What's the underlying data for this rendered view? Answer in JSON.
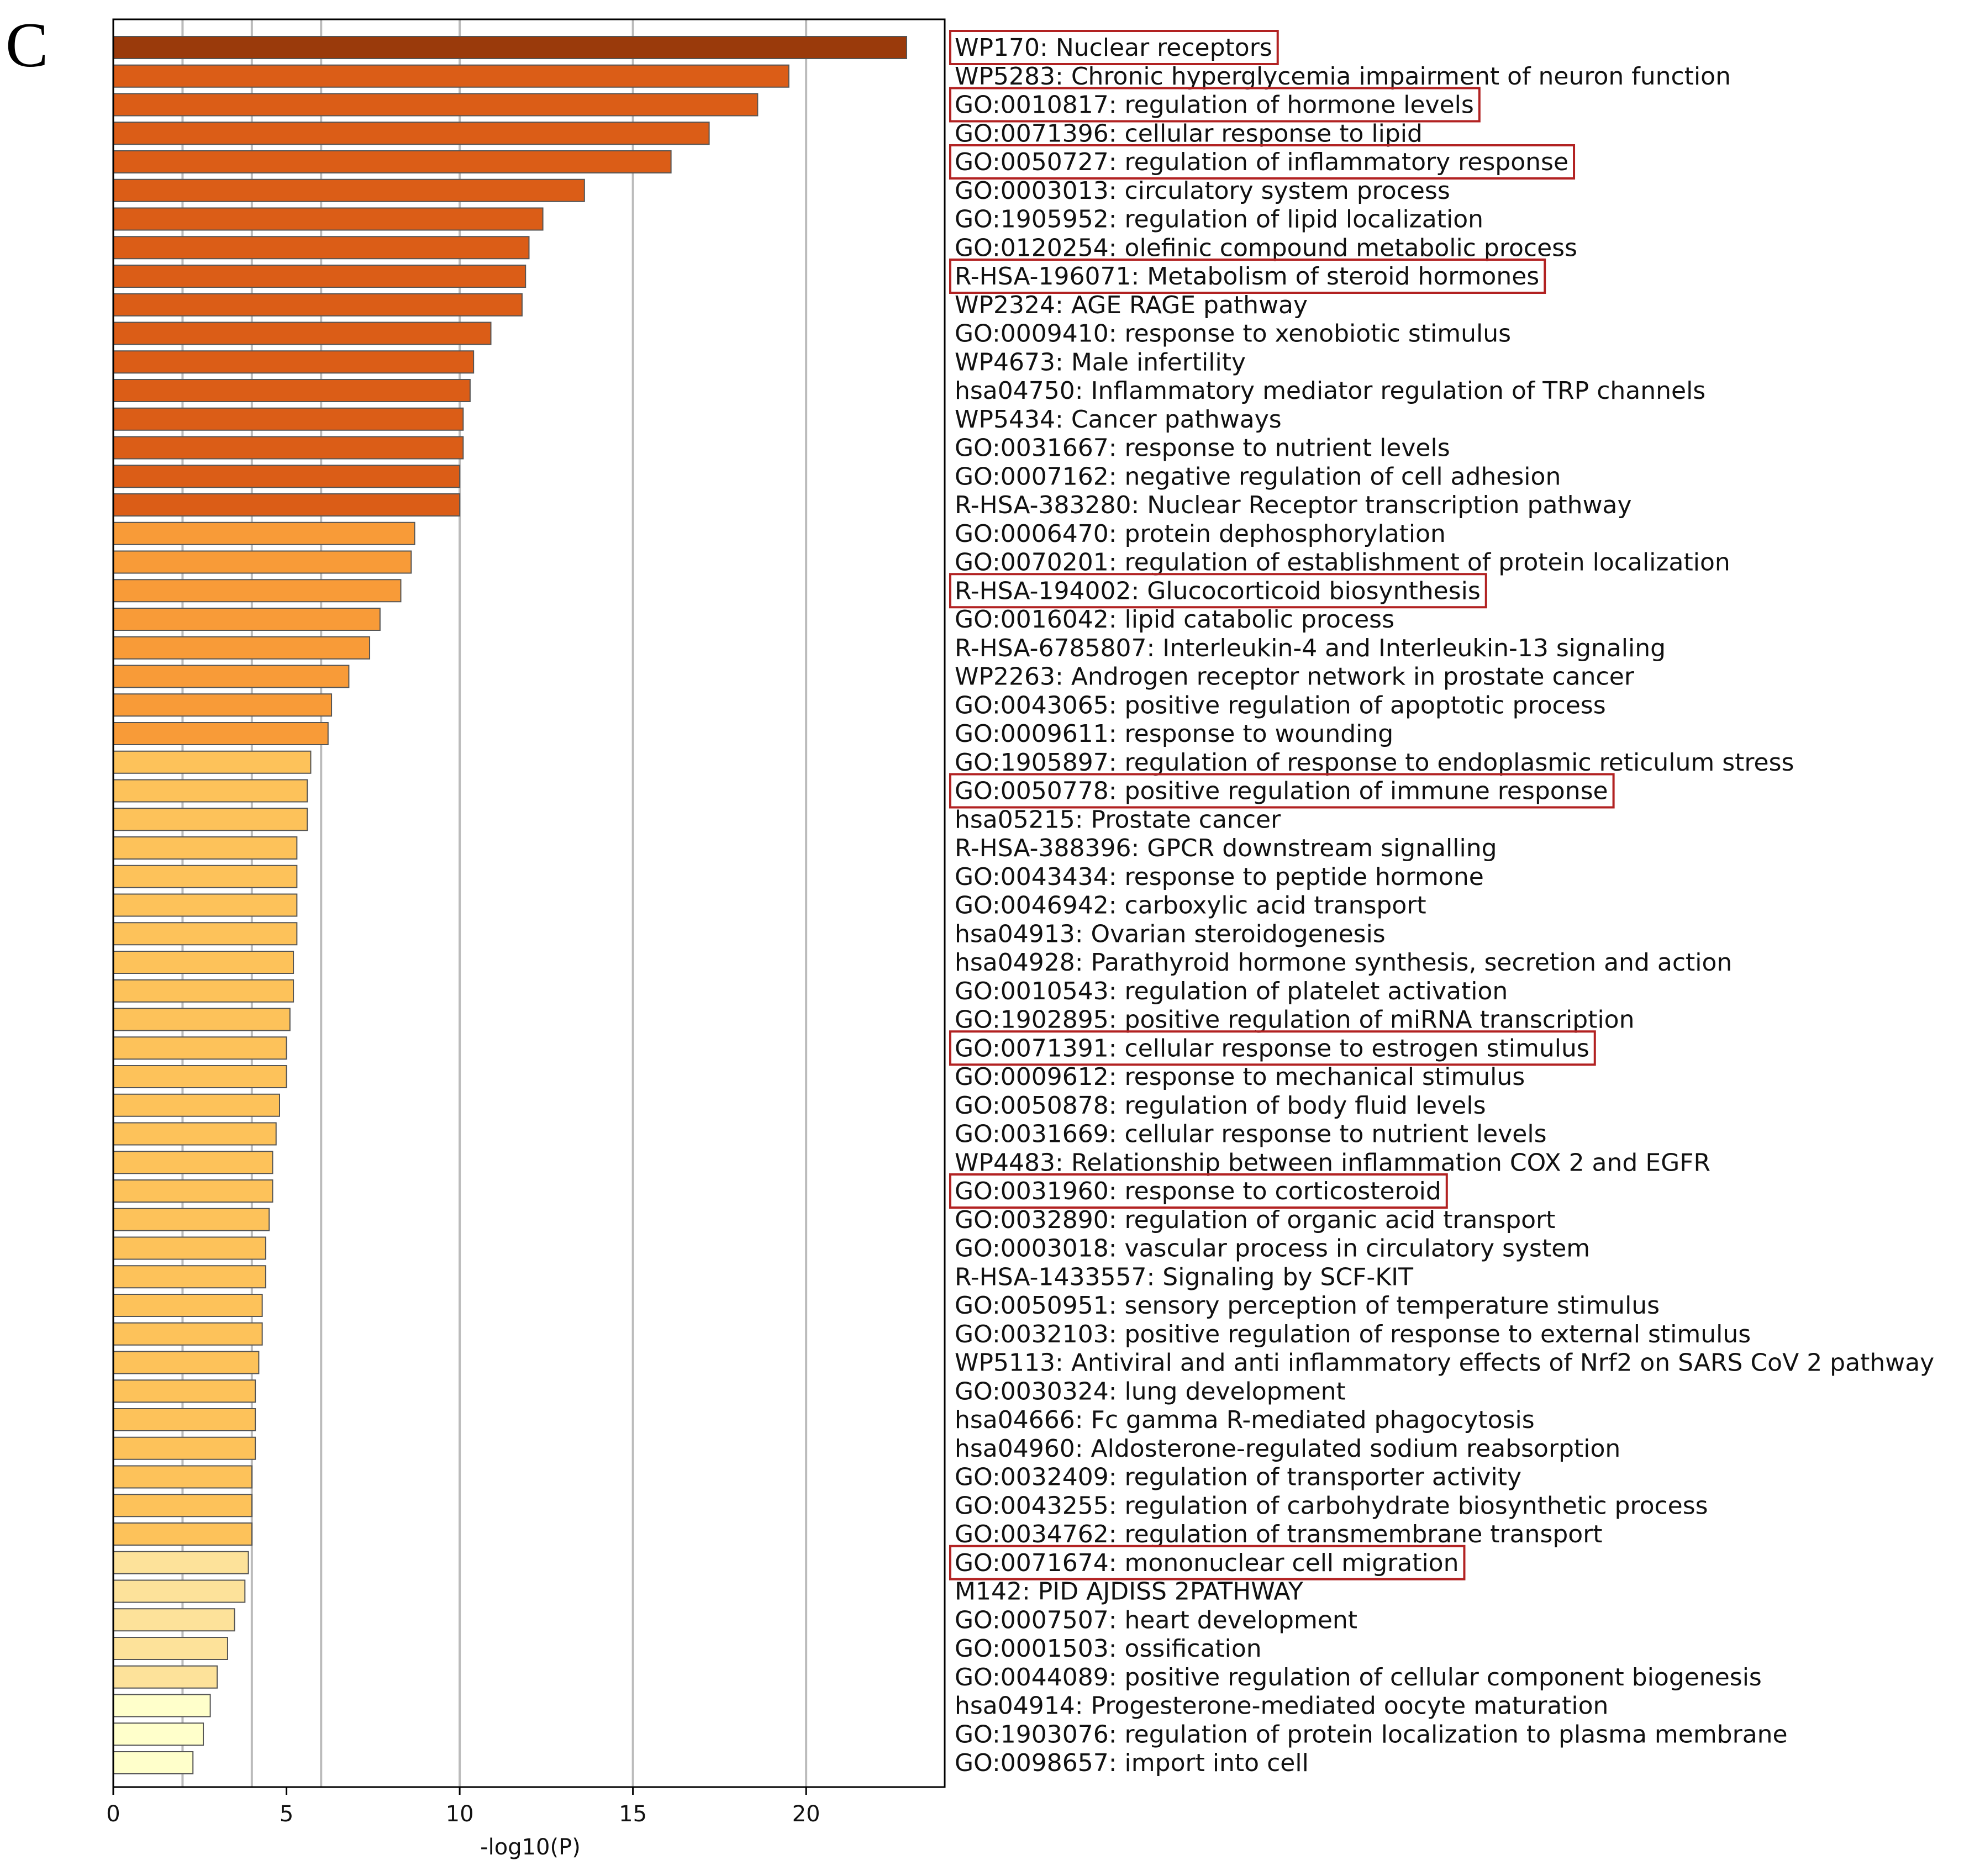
{
  "panel_label": "C",
  "chart_data": {
    "type": "bar",
    "orientation": "horizontal",
    "xlabel": "-log10(P)",
    "xlim": [
      0,
      24
    ],
    "xticks": [
      0,
      5,
      10,
      15,
      20
    ],
    "vertical_gridlines": [
      2,
      4,
      6,
      10,
      15,
      20
    ],
    "colors": {
      "darkest": "#9a3a0b",
      "dark": "#db5d17",
      "medium": "#f89b38",
      "light": "#fdc25a",
      "pale": "#fde29a",
      "palest": "#ffffcb",
      "highlight_box": "#b22222",
      "grid": "#bbbbbb",
      "bar_edge": "#555555"
    },
    "categories": [
      "WP170: Nuclear receptors",
      "WP5283: Chronic hyperglycemia impairment of neuron function",
      "GO:0010817: regulation of hormone levels",
      "GO:0071396: cellular response to lipid",
      "GO:0050727: regulation of inflammatory response",
      "GO:0003013: circulatory system process",
      "GO:1905952: regulation of lipid localization",
      "GO:0120254: olefinic compound metabolic process",
      "R-HSA-196071: Metabolism of steroid hormones",
      "WP2324: AGE RAGE pathway",
      "GO:0009410: response to xenobiotic stimulus",
      "WP4673: Male infertility",
      "hsa04750: Inflammatory mediator regulation of TRP channels",
      "WP5434: Cancer pathways",
      "GO:0031667: response to nutrient levels",
      "GO:0007162: negative regulation of cell adhesion",
      "R-HSA-383280: Nuclear Receptor transcription pathway",
      "GO:0006470: protein dephosphorylation",
      "GO:0070201: regulation of establishment of protein localization",
      "R-HSA-194002: Glucocorticoid biosynthesis",
      "GO:0016042: lipid catabolic process",
      "R-HSA-6785807: Interleukin-4 and Interleukin-13 signaling",
      "WP2263: Androgen receptor network in prostate cancer",
      "GO:0043065: positive regulation of apoptotic process",
      "GO:0009611: response to wounding",
      "GO:1905897: regulation of response to endoplasmic reticulum stress",
      "GO:0050778: positive regulation of immune response",
      "hsa05215: Prostate cancer",
      "R-HSA-388396: GPCR downstream signalling",
      "GO:0043434: response to peptide hormone",
      "GO:0046942: carboxylic acid transport",
      "hsa04913: Ovarian steroidogenesis",
      "hsa04928: Parathyroid hormone synthesis, secretion and action",
      "GO:0010543: regulation of platelet activation",
      "GO:1902895: positive regulation of miRNA transcription",
      "GO:0071391: cellular response to estrogen stimulus",
      "GO:0009612: response to mechanical stimulus",
      "GO:0050878: regulation of body fluid levels",
      "GO:0031669: cellular response to nutrient levels",
      "WP4483: Relationship between inflammation COX 2 and EGFR",
      "GO:0031960: response to corticosteroid",
      "GO:0032890: regulation of organic acid transport",
      "GO:0003018: vascular process in circulatory system",
      "R-HSA-1433557: Signaling by SCF-KIT",
      "GO:0050951: sensory perception of temperature stimulus",
      "GO:0032103: positive regulation of response to external stimulus",
      "WP5113: Antiviral and anti inflammatory effects of Nrf2 on SARS CoV 2 pathway",
      "GO:0030324: lung development",
      "hsa04666: Fc gamma R-mediated phagocytosis",
      "hsa04960: Aldosterone-regulated sodium reabsorption",
      "GO:0032409: regulation of transporter activity",
      "GO:0043255: regulation of carbohydrate biosynthetic process",
      "GO:0034762: regulation of transmembrane transport",
      "GO:0071674: mononuclear cell migration",
      "M142: PID AJDISS 2PATHWAY",
      "GO:0007507: heart development",
      "GO:0001503: ossification",
      "GO:0044089: positive regulation of cellular component biogenesis",
      "hsa04914: Progesterone-mediated oocyte maturation",
      "GO:1903076: regulation of protein localization to plasma membrane",
      "GO:0098657: import into cell"
    ],
    "values": [
      22.9,
      19.5,
      18.6,
      17.2,
      16.1,
      13.6,
      12.4,
      12.0,
      11.9,
      11.8,
      10.9,
      10.4,
      10.3,
      10.1,
      10.1,
      10.0,
      10.0,
      8.7,
      8.6,
      8.3,
      7.7,
      7.4,
      6.8,
      6.3,
      6.2,
      5.7,
      5.6,
      5.6,
      5.3,
      5.3,
      5.3,
      5.3,
      5.2,
      5.2,
      5.1,
      5.0,
      5.0,
      4.8,
      4.7,
      4.6,
      4.6,
      4.5,
      4.4,
      4.4,
      4.3,
      4.3,
      4.2,
      4.1,
      4.1,
      4.1,
      4.0,
      4.0,
      4.0,
      3.9,
      3.8,
      3.5,
      3.3,
      3.0,
      2.8,
      2.6,
      2.3
    ],
    "color_levels": [
      "darkest",
      "dark",
      "dark",
      "dark",
      "dark",
      "dark",
      "dark",
      "dark",
      "dark",
      "dark",
      "dark",
      "dark",
      "dark",
      "dark",
      "dark",
      "dark",
      "dark",
      "medium",
      "medium",
      "medium",
      "medium",
      "medium",
      "medium",
      "medium",
      "medium",
      "light",
      "light",
      "light",
      "light",
      "light",
      "light",
      "light",
      "light",
      "light",
      "light",
      "light",
      "light",
      "light",
      "light",
      "light",
      "light",
      "light",
      "light",
      "light",
      "light",
      "light",
      "light",
      "light",
      "light",
      "light",
      "light",
      "light",
      "light",
      "pale",
      "pale",
      "pale",
      "pale",
      "pale",
      "palest",
      "palest",
      "palest"
    ],
    "highlighted": [
      0,
      2,
      4,
      8,
      19,
      26,
      35,
      40,
      53
    ]
  }
}
